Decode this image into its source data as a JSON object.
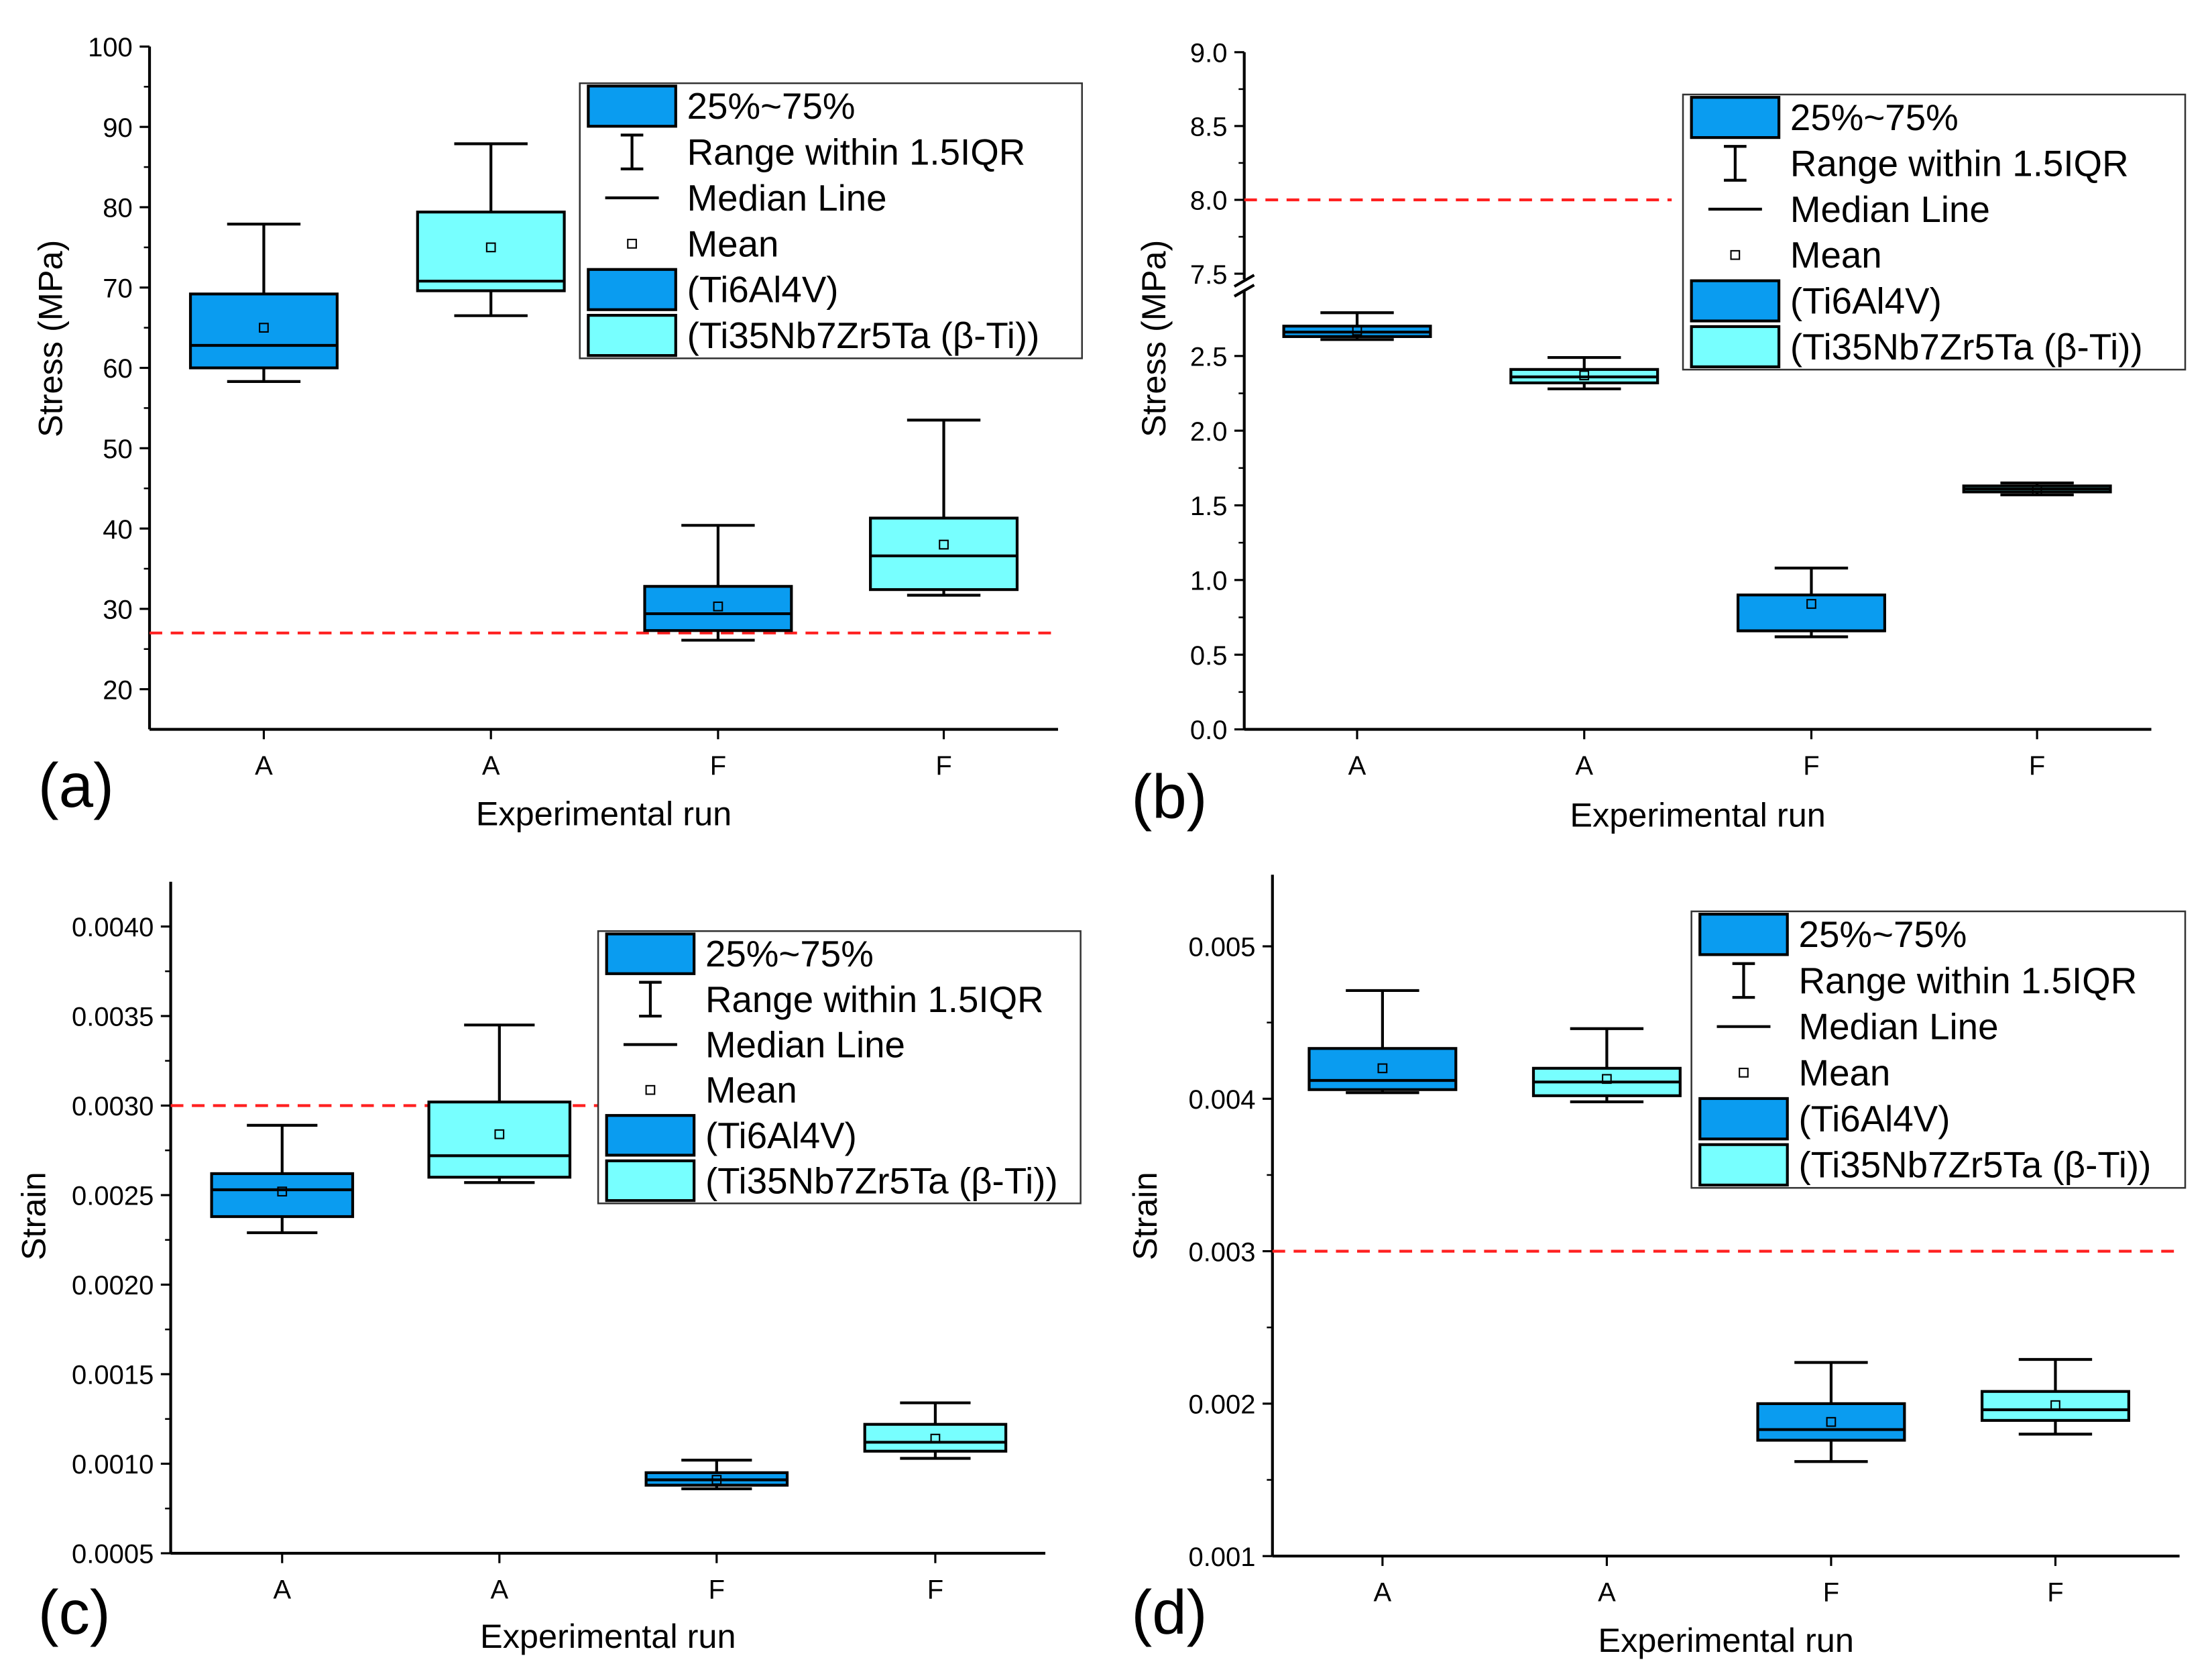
{
  "colors": {
    "ti6al4v": "#0A9CF0",
    "ti35": "#77FFFF",
    "reference": "#FF2020",
    "mean_marker": "#000000"
  },
  "legend": {
    "entries": [
      "25%~75%",
      "Range within 1.5IQR",
      "Median Line",
      "Mean",
      "(Ti6Al4V)",
      "(Ti35Nb7Zr5Ta (β-Ti))"
    ]
  },
  "chart_data": [
    {
      "panel": "(a)",
      "type": "box",
      "xlabel": "Experimental run",
      "ylabel": "Stress (MPa)",
      "ylim": [
        15,
        100
      ],
      "yticks": [
        "20",
        "30",
        "40",
        "50",
        "60",
        "70",
        "80",
        "90",
        "100"
      ],
      "categories": [
        "A",
        "A",
        "F",
        "F"
      ],
      "reference_line": 27,
      "boxes": [
        {
          "category": "A",
          "material": "Ti6Al4V",
          "whisker_low": 58.3,
          "q1": 60.0,
          "median": 62.8,
          "q3": 69.2,
          "whisker_high": 77.9,
          "mean": 65.0
        },
        {
          "category": "A",
          "material": "Ti35Nb7Zr5Ta",
          "whisker_low": 66.5,
          "q1": 69.6,
          "median": 70.8,
          "q3": 79.4,
          "whisker_high": 87.9,
          "mean": 75.0
        },
        {
          "category": "F",
          "material": "Ti6Al4V",
          "whisker_low": 26.1,
          "q1": 27.3,
          "median": 29.4,
          "q3": 32.8,
          "whisker_high": 40.4,
          "mean": 30.3
        },
        {
          "category": "F",
          "material": "Ti35Nb7Zr5Ta",
          "whisker_low": 31.7,
          "q1": 32.4,
          "median": 36.6,
          "q3": 41.3,
          "whisker_high": 53.5,
          "mean": 38.0
        }
      ]
    },
    {
      "panel": "(b)",
      "type": "box",
      "xlabel": "Experimental run",
      "ylabel": "Stress (MPa)",
      "ylim": [
        0,
        9.0
      ],
      "y_break": {
        "lower": [
          0,
          2.9
        ],
        "upper": [
          7.5,
          9.0
        ]
      },
      "yticks": [
        "0.0",
        "0.5",
        "1.0",
        "1.5",
        "2.0",
        "2.5",
        "7.5",
        "8.0",
        "8.5",
        "9.0"
      ],
      "categories": [
        "A",
        "A",
        "F",
        "F"
      ],
      "reference_line": 8.0,
      "boxes": [
        {
          "category": "A",
          "material": "Ti6Al4V",
          "whisker_low": 2.61,
          "q1": 2.63,
          "median": 2.66,
          "q3": 2.7,
          "whisker_high": 2.79,
          "mean": 2.67
        },
        {
          "category": "A",
          "material": "Ti35Nb7Zr5Ta",
          "whisker_low": 2.28,
          "q1": 2.32,
          "median": 2.36,
          "q3": 2.41,
          "whisker_high": 2.49,
          "mean": 2.37
        },
        {
          "category": "F",
          "material": "Ti6Al4V",
          "whisker_low": 0.62,
          "q1": 0.66,
          "median": 0.66,
          "q3": 0.9,
          "whisker_high": 1.08,
          "mean": 0.84
        },
        {
          "category": "F",
          "material": "Ti35Nb7Zr5Ta",
          "whisker_low": 1.57,
          "q1": 1.59,
          "median": 1.61,
          "q3": 1.63,
          "whisker_high": 1.65,
          "mean": 1.6
        }
      ]
    },
    {
      "panel": "(c)",
      "type": "box",
      "xlabel": "Experimental run",
      "ylabel": "Strain",
      "ylim": [
        0.0005,
        0.00425
      ],
      "yticks": [
        "0.0005",
        "0.0010",
        "0.0015",
        "0.0020",
        "0.0025",
        "0.0030",
        "0.0035",
        "0.0040"
      ],
      "categories": [
        "A",
        "A",
        "F",
        "F"
      ],
      "reference_line": 0.003,
      "boxes": [
        {
          "category": "A",
          "material": "Ti6Al4V",
          "whisker_low": 0.00229,
          "q1": 0.00238,
          "median": 0.00253,
          "q3": 0.00262,
          "whisker_high": 0.00289,
          "mean": 0.00252
        },
        {
          "category": "A",
          "material": "Ti35Nb7Zr5Ta",
          "whisker_low": 0.00257,
          "q1": 0.0026,
          "median": 0.00272,
          "q3": 0.00302,
          "whisker_high": 0.00345,
          "mean": 0.00284
        },
        {
          "category": "F",
          "material": "Ti6Al4V",
          "whisker_low": 0.00086,
          "q1": 0.00088,
          "median": 0.00091,
          "q3": 0.00095,
          "whisker_high": 0.00102,
          "mean": 0.00091
        },
        {
          "category": "F",
          "material": "Ti35Nb7Zr5Ta",
          "whisker_low": 0.00103,
          "q1": 0.00107,
          "median": 0.00112,
          "q3": 0.00122,
          "whisker_high": 0.00134,
          "mean": 0.00114
        }
      ]
    },
    {
      "panel": "(d)",
      "type": "box",
      "xlabel": "Experimental run",
      "ylabel": "Strain",
      "ylim": [
        0.001,
        0.00547
      ],
      "yticks": [
        "0.001",
        "0.002",
        "0.003",
        "0.004",
        "0.005"
      ],
      "categories": [
        "A",
        "A",
        "F",
        "F"
      ],
      "reference_line": 0.003,
      "boxes": [
        {
          "category": "A",
          "material": "Ti6Al4V",
          "whisker_low": 0.00404,
          "q1": 0.00406,
          "median": 0.00412,
          "q3": 0.00433,
          "whisker_high": 0.00471,
          "mean": 0.0042
        },
        {
          "category": "A",
          "material": "Ti35Nb7Zr5Ta",
          "whisker_low": 0.00398,
          "q1": 0.00402,
          "median": 0.00411,
          "q3": 0.0042,
          "whisker_high": 0.00446,
          "mean": 0.00413
        },
        {
          "category": "F",
          "material": "Ti6Al4V",
          "whisker_low": 0.00162,
          "q1": 0.00176,
          "median": 0.00183,
          "q3": 0.002,
          "whisker_high": 0.00227,
          "mean": 0.00188
        },
        {
          "category": "F",
          "material": "Ti35Nb7Zr5Ta",
          "whisker_low": 0.0018,
          "q1": 0.00189,
          "median": 0.00196,
          "q3": 0.00208,
          "whisker_high": 0.00229,
          "mean": 0.00199
        }
      ]
    }
  ]
}
